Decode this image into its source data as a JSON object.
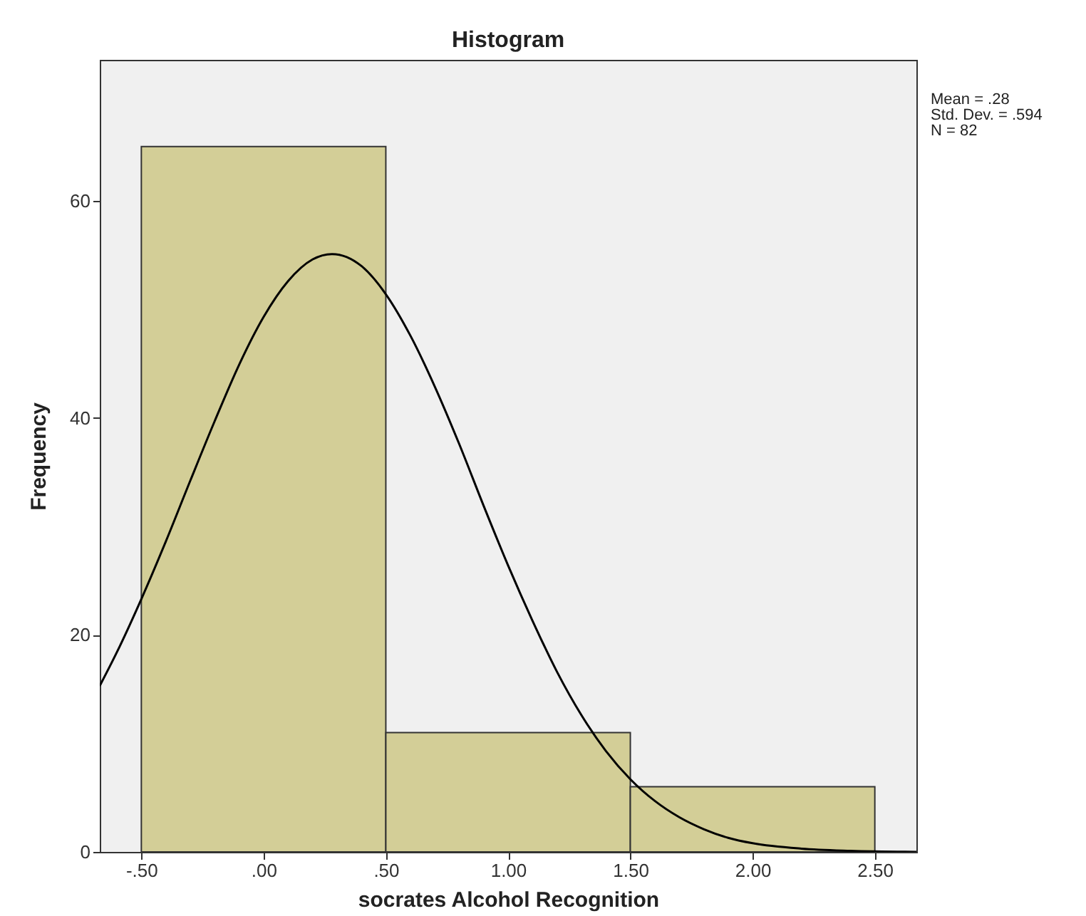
{
  "chart_data": {
    "type": "histogram",
    "title": "Histogram",
    "xlabel": "socrates Alcohol Recognition",
    "ylabel": "Frequency",
    "bins": [
      -0.5,
      0.5,
      1.5,
      2.5
    ],
    "values": [
      65,
      11,
      6
    ],
    "color": "#d3ce97",
    "series": [
      {
        "type": "line",
        "color": "#000000",
        "x": [
          -0.67,
          -0.6,
          -0.5,
          -0.4,
          -0.3,
          -0.2,
          -0.1,
          0,
          0.1,
          0.2,
          0.28,
          0.4,
          0.5,
          0.6,
          0.7,
          0.8,
          0.9,
          1.0,
          1.1,
          1.2,
          1.3,
          1.4,
          1.5,
          1.6,
          1.7,
          1.8,
          1.9,
          2.0,
          2.2,
          2.4,
          2.67
        ],
        "values": [
          15.3,
          18.4,
          23.3,
          28.6,
          34.2,
          39.7,
          44.9,
          49.3,
          52.6,
          54.6,
          55.1,
          54.0,
          51.4,
          47.6,
          42.9,
          37.6,
          31.9,
          26.4,
          21.3,
          16.6,
          12.6,
          9.3,
          6.7,
          4.7,
          3.2,
          2.1,
          1.3,
          0.8,
          0.3,
          0.1,
          0.0
        ]
      }
    ],
    "xlim": [
      -0.67,
      2.67
    ],
    "ylim": [
      0,
      73
    ],
    "xticks": [
      {
        "value": -0.5,
        "label": "-.50"
      },
      {
        "value": 0,
        "label": ".00"
      },
      {
        "value": 0.5,
        "label": ".50"
      },
      {
        "value": 1.0,
        "label": "1.00"
      },
      {
        "value": 1.5,
        "label": "1.50"
      },
      {
        "value": 2.0,
        "label": "2.00"
      },
      {
        "value": 2.5,
        "label": "2.50"
      }
    ],
    "yticks": [
      0,
      20,
      40,
      60
    ],
    "grid": false,
    "legend": false,
    "annotations": [
      "Mean = .28",
      "Std. Dev. = .594",
      "N = 82"
    ]
  }
}
